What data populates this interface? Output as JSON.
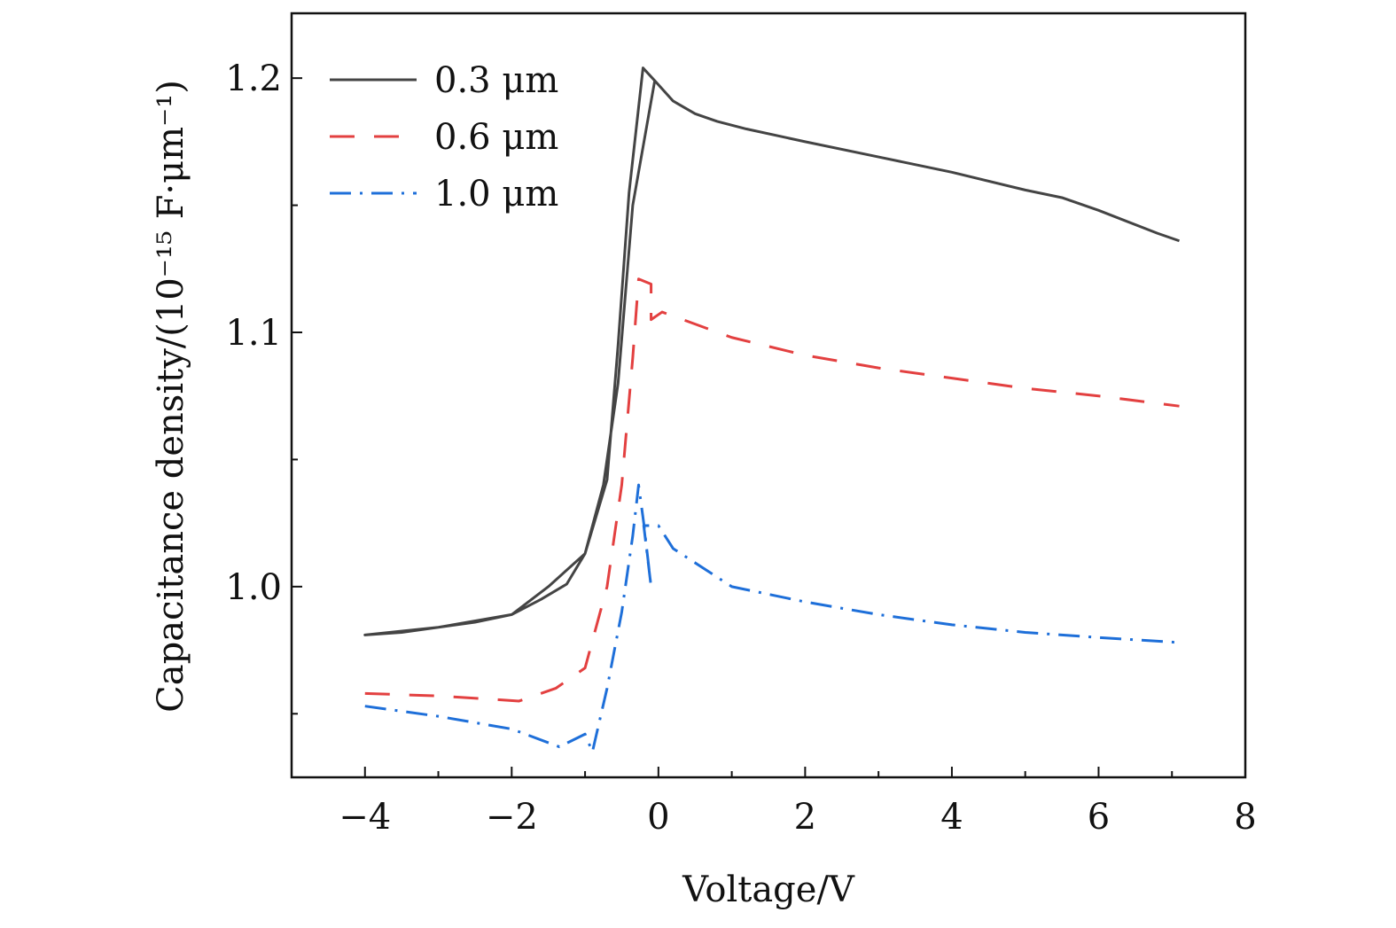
{
  "chart_data": {
    "type": "line",
    "xlabel": "Voltage/V",
    "ylabel": "Capacitance density/(10⁻¹⁵ F·μm⁻¹)",
    "xlim": [
      -5,
      8
    ],
    "ylim": [
      0.925,
      1.2255
    ],
    "xticks": [
      -4,
      -2,
      0,
      2,
      4,
      6,
      8
    ],
    "xtick_labels": [
      "−4",
      "−2",
      "0",
      "2",
      "4",
      "6",
      "8"
    ],
    "yticks": [
      1.0,
      1.1,
      1.2
    ],
    "ytick_labels": [
      "1.0",
      "1.1",
      "1.2"
    ],
    "legend_position": "top-left",
    "grid": false,
    "series": [
      {
        "name": "0.3 μm",
        "color": "#444444",
        "dash": "",
        "x": [
          7.1,
          6.8,
          6.0,
          5.5,
          5.0,
          4.0,
          3.0,
          2.0,
          1.2,
          0.8,
          0.5,
          0.2,
          -0.05,
          -0.35,
          -0.55,
          -0.75,
          -1.0,
          -1.5,
          -2.0,
          -2.5,
          -3.0,
          -3.5,
          -4.0,
          -3.0,
          -2.0,
          -1.6,
          -1.25,
          -1.0,
          -0.7,
          -0.55,
          -0.4,
          -0.21,
          -0.05
        ],
        "y": [
          1.136,
          1.139,
          1.148,
          1.153,
          1.156,
          1.163,
          1.169,
          1.175,
          1.18,
          1.183,
          1.186,
          1.191,
          1.199,
          1.15,
          1.08,
          1.04,
          1.013,
          1.0,
          0.989,
          0.986,
          0.984,
          0.982,
          0.981,
          0.984,
          0.989,
          0.995,
          1.001,
          1.013,
          1.042,
          1.095,
          1.155,
          1.204,
          1.199
        ]
      },
      {
        "name": "0.6 μm",
        "color": "#e34040",
        "dash": "28,22",
        "x": [
          -4.0,
          -3.0,
          -1.9,
          -1.4,
          -1.0,
          -0.7,
          -0.5,
          -0.35,
          -0.27,
          -0.1,
          -0.1,
          0.05,
          1.0,
          2.0,
          3.0,
          4.0,
          5.0,
          6.0,
          7.1
        ],
        "y": [
          0.958,
          0.957,
          0.955,
          0.96,
          0.968,
          1.0,
          1.04,
          1.09,
          1.121,
          1.119,
          1.105,
          1.108,
          1.098,
          1.091,
          1.086,
          1.082,
          1.078,
          1.075,
          1.071
        ]
      },
      {
        "name": "1.0 μm",
        "color": "#1e6fd9",
        "dash": "24,10,3,10",
        "x": [
          -4.0,
          -3.0,
          -2.0,
          -1.35,
          -1.0,
          -0.9,
          -0.7,
          -0.5,
          -0.35,
          -0.27,
          -0.2,
          -0.1,
          -0.2,
          0.0,
          0.2,
          1.0,
          2.0,
          3.0,
          4.0,
          5.0,
          6.0,
          7.1
        ],
        "y": [
          0.953,
          0.949,
          0.944,
          0.937,
          0.942,
          0.935,
          0.96,
          0.99,
          1.02,
          1.04,
          1.025,
          1.0,
          1.024,
          1.024,
          1.015,
          1.0,
          0.994,
          0.989,
          0.985,
          0.982,
          0.98,
          0.978
        ]
      }
    ]
  }
}
